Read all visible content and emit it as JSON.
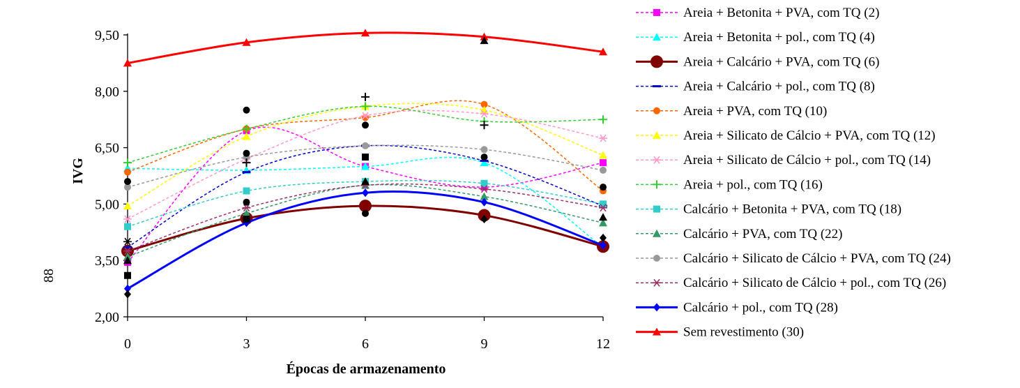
{
  "page_number": "88",
  "chart_data": {
    "type": "line",
    "title": "",
    "xlabel": "Épocas de armazenamento",
    "ylabel": "IVG",
    "x": [
      0,
      3,
      6,
      9,
      12
    ],
    "x_ticks": [
      "0",
      "3",
      "6",
      "9",
      "12"
    ],
    "ylim": [
      2.0,
      9.5
    ],
    "y_ticks": [
      "2,00",
      "3,50",
      "5,00",
      "6,50",
      "8,00",
      "9,50"
    ],
    "y_tick_values": [
      2.0,
      3.5,
      5.0,
      6.5,
      8.0,
      9.5
    ],
    "grid": false,
    "legend_position": "right",
    "series": [
      {
        "name": "Areia + Betonita + PVA, com TQ (2)",
        "color": "#ff00ff",
        "dash": true,
        "marker": "square",
        "values": [
          3.45,
          6.95,
          6.0,
          5.45,
          6.1
        ]
      },
      {
        "name": "Areia + Betonita + pol., com TQ (4)",
        "color": "#00ffff",
        "dash": true,
        "marker": "triangle",
        "values": [
          5.95,
          5.9,
          6.0,
          6.1,
          3.85
        ]
      },
      {
        "name": "Areia + Calcário + PVA, com TQ (6)",
        "color": "#800000",
        "dash": false,
        "marker": "circle-large",
        "values": [
          3.75,
          4.62,
          4.95,
          4.7,
          3.87
        ]
      },
      {
        "name": "Areia + Calcário + pol., com TQ (8)",
        "color": "#0000cc",
        "dash": true,
        "marker": "dash",
        "values": [
          3.85,
          5.85,
          6.55,
          6.15,
          4.95
        ]
      },
      {
        "name": "Areia + PVA, com TQ (10)",
        "color": "#ff6600",
        "dash": true,
        "marker": "circle",
        "values": [
          5.85,
          7.0,
          7.3,
          7.65,
          5.35
        ]
      },
      {
        "name": "Areia + Silicato de Cálcio + PVA, com TQ (12)",
        "color": "#ffff00",
        "dash": true,
        "marker": "triangle",
        "values": [
          4.95,
          6.8,
          7.6,
          7.5,
          6.3
        ]
      },
      {
        "name": "Areia + Silicato de Cálcio + pol., com TQ (14)",
        "color": "#ff99cc",
        "dash": true,
        "marker": "asterisk",
        "values": [
          4.6,
          6.2,
          7.35,
          7.4,
          6.75
        ]
      },
      {
        "name": "Areia + pol., com TQ (16)",
        "color": "#33cc33",
        "dash": true,
        "marker": "plus",
        "values": [
          6.1,
          7.0,
          7.6,
          7.2,
          7.25
        ]
      },
      {
        "name": "Calcário + Betonita + PVA, com TQ (18)",
        "color": "#33cccc",
        "dash": true,
        "marker": "square",
        "values": [
          4.4,
          5.35,
          5.6,
          5.55,
          5.0
        ]
      },
      {
        "name": "Calcário + PVA, com TQ (22)",
        "color": "#339966",
        "dash": true,
        "marker": "triangle",
        "values": [
          3.6,
          4.75,
          5.5,
          5.2,
          4.5
        ]
      },
      {
        "name": "Calcário + Silicato de Cálcio + PVA, com TQ (24)",
        "color": "#999999",
        "dash": true,
        "marker": "circle",
        "values": [
          5.45,
          6.25,
          6.55,
          6.45,
          5.9
        ]
      },
      {
        "name": "Calcário + Silicato de Cálcio + pol., com TQ (26)",
        "color": "#993366",
        "dash": true,
        "marker": "asterisk",
        "values": [
          3.75,
          4.9,
          5.5,
          5.4,
          4.9
        ]
      },
      {
        "name": "Calcário + pol., com TQ (28)",
        "color": "#0000ff",
        "dash": false,
        "marker": "diamond",
        "values": [
          2.75,
          4.5,
          5.3,
          5.05,
          3.9
        ]
      },
      {
        "name": "Sem revestimento (30)",
        "color": "#ff0000",
        "dash": false,
        "marker": "triangle",
        "values": [
          8.75,
          9.3,
          9.55,
          9.45,
          9.05
        ]
      }
    ],
    "extra_points_color": "#000000",
    "extra_points": [
      {
        "x": 0,
        "y": 2.6,
        "marker": "diamond"
      },
      {
        "x": 0,
        "y": 3.1,
        "marker": "square"
      },
      {
        "x": 0,
        "y": 3.5,
        "marker": "triangle"
      },
      {
        "x": 0,
        "y": 4.0,
        "marker": "asterisk"
      },
      {
        "x": 0,
        "y": 5.6,
        "marker": "circle"
      },
      {
        "x": 3,
        "y": 7.5,
        "marker": "circle"
      },
      {
        "x": 3,
        "y": 6.35,
        "marker": "circle"
      },
      {
        "x": 3,
        "y": 6.1,
        "marker": "plus"
      },
      {
        "x": 3,
        "y": 5.05,
        "marker": "circle"
      },
      {
        "x": 3,
        "y": 4.6,
        "marker": "square"
      },
      {
        "x": 6,
        "y": 7.85,
        "marker": "plus"
      },
      {
        "x": 6,
        "y": 7.1,
        "marker": "circle"
      },
      {
        "x": 6,
        "y": 6.25,
        "marker": "square"
      },
      {
        "x": 6,
        "y": 5.6,
        "marker": "triangle"
      },
      {
        "x": 6,
        "y": 4.75,
        "marker": "circle"
      },
      {
        "x": 9,
        "y": 9.35,
        "marker": "triangle"
      },
      {
        "x": 9,
        "y": 7.1,
        "marker": "plus"
      },
      {
        "x": 9,
        "y": 6.25,
        "marker": "circle"
      },
      {
        "x": 9,
        "y": 4.6,
        "marker": "diamond"
      },
      {
        "x": 12,
        "y": 5.45,
        "marker": "circle"
      },
      {
        "x": 12,
        "y": 4.1,
        "marker": "diamond"
      },
      {
        "x": 12,
        "y": 4.65,
        "marker": "triangle"
      }
    ]
  }
}
